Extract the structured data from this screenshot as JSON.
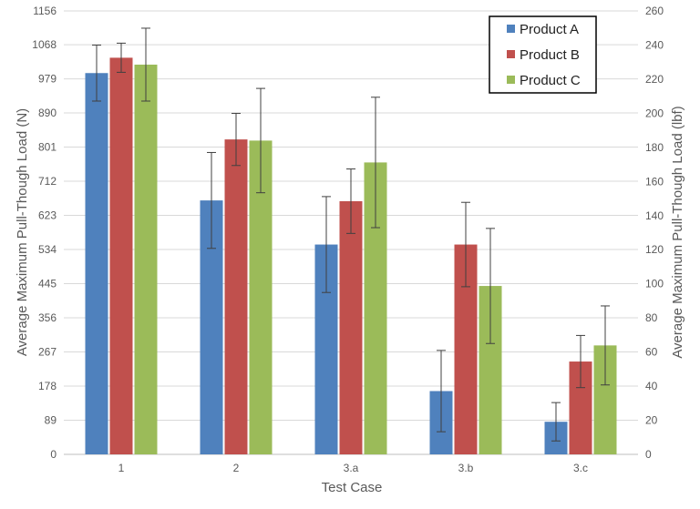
{
  "chart_data": {
    "type": "bar",
    "title": "",
    "xlabel": "Test Case",
    "ylabel": "Average Maximum Pull-Though Load (N)",
    "y2label": "Average Maximum Pull-Though Load (lbf)",
    "categories": [
      "1",
      "2",
      "3.a",
      "3.b",
      "3.c"
    ],
    "ylim": [
      0,
      1156
    ],
    "yticks": [
      "0",
      "89",
      "178",
      "267",
      "356",
      "445",
      "534",
      "623",
      "712",
      "801",
      "890",
      "979",
      "1068",
      "1156"
    ],
    "y2lim": [
      0,
      260
    ],
    "y2ticks": [
      "0",
      "20",
      "40",
      "60",
      "80",
      "100",
      "120",
      "140",
      "160",
      "180",
      "200",
      "220",
      "240",
      "260"
    ],
    "grid": true,
    "legend_position": "top-right",
    "series": [
      {
        "name": "Product A",
        "color": "#4f81bd",
        "values": [
          994,
          662,
          547,
          165,
          85
        ],
        "error": [
          73,
          125,
          125,
          106,
          50
        ]
      },
      {
        "name": "Product B",
        "color": "#c0504d",
        "values": [
          1034,
          821,
          660,
          547,
          242
        ],
        "error": [
          38,
          68,
          84,
          110,
          68
        ]
      },
      {
        "name": "Product C",
        "color": "#9bbb59",
        "values": [
          1016,
          818,
          761,
          439,
          284
        ],
        "error": [
          95,
          136,
          170,
          150,
          103
        ]
      }
    ]
  }
}
